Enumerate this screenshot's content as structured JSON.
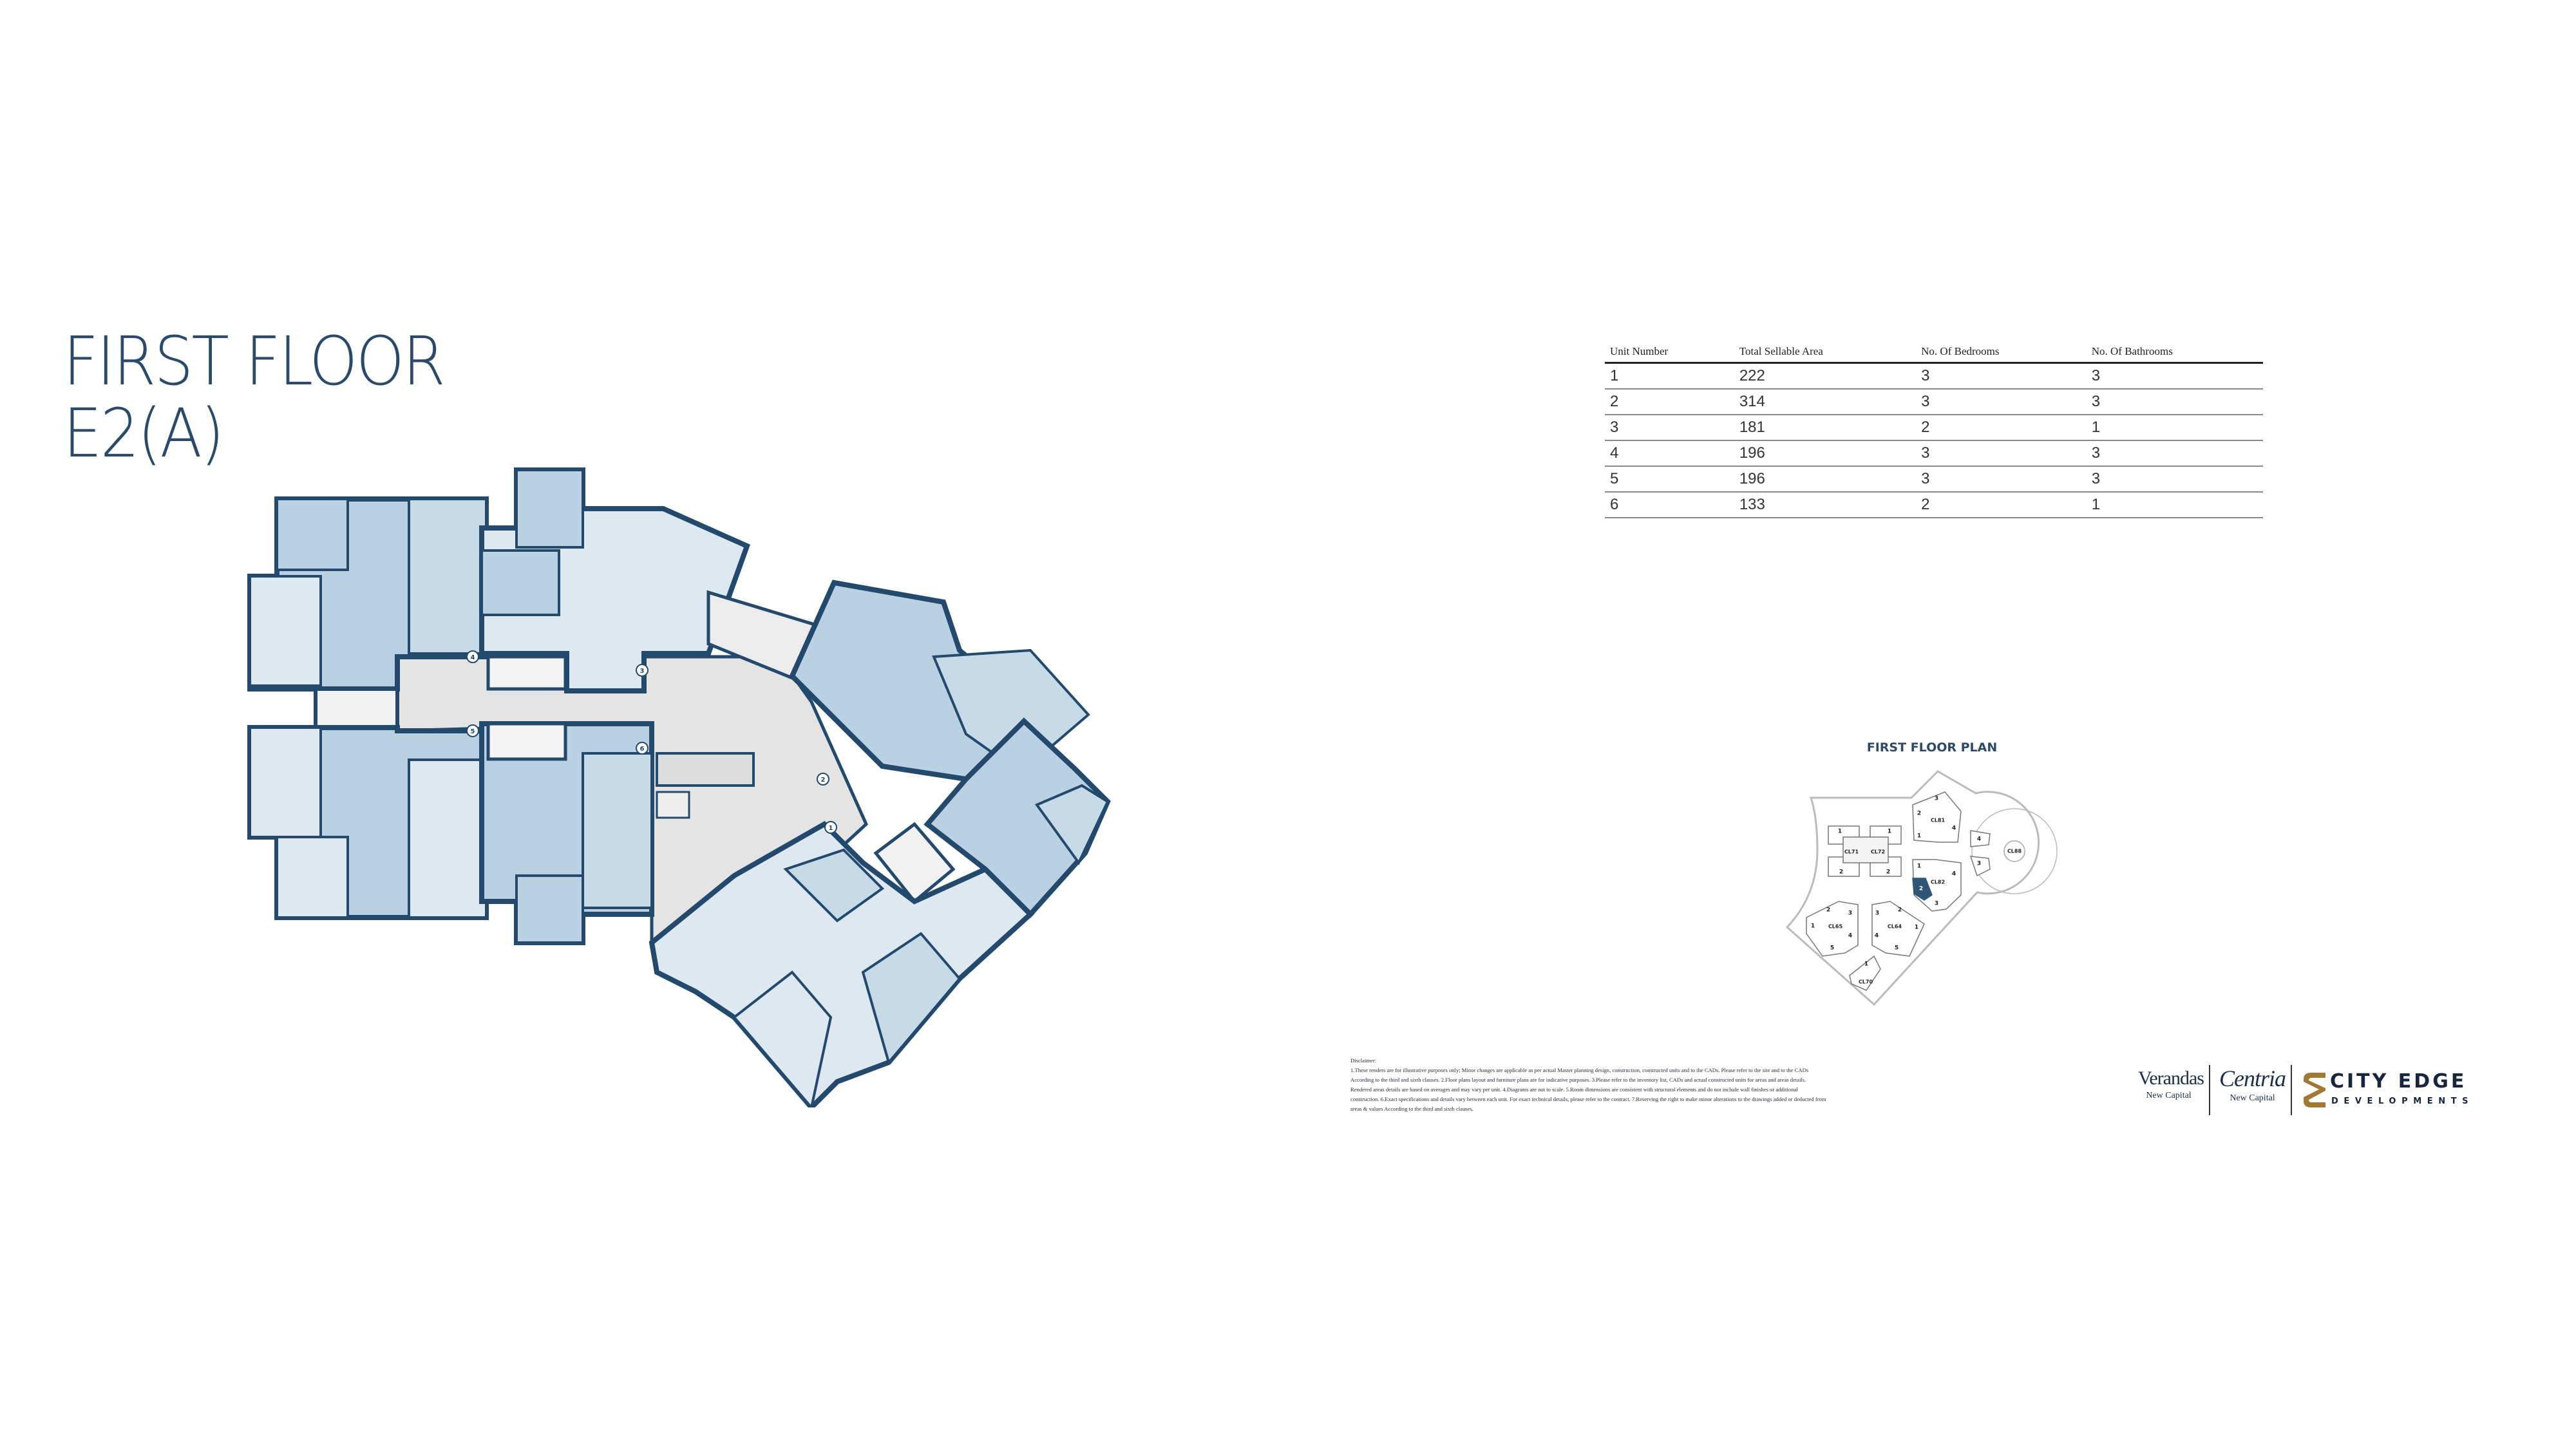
{
  "title": {
    "line1": "FIRST FLOOR",
    "line2": "E2(A)"
  },
  "table": {
    "headers": [
      "Unit Number",
      "Total Sellable Area",
      "No. Of Bedrooms",
      "No. Of Bathrooms"
    ],
    "rows": [
      [
        "1",
        "222",
        "3",
        "3"
      ],
      [
        "2",
        "314",
        "3",
        "3"
      ],
      [
        "3",
        "181",
        "2",
        "1"
      ],
      [
        "4",
        "196",
        "3",
        "3"
      ],
      [
        "5",
        "196",
        "3",
        "3"
      ],
      [
        "6",
        "133",
        "2",
        "1"
      ]
    ]
  },
  "keyplan": {
    "title": "FIRST FLOOR PLAN",
    "clusters": [
      "CL71",
      "CL72",
      "CL81",
      "CL82",
      "CL88",
      "CL65",
      "CL64",
      "CL70"
    ],
    "units": [
      "1",
      "2",
      "1",
      "2",
      "3",
      "2",
      "1",
      "4",
      "1",
      "4",
      "3",
      "2",
      "4",
      "3",
      "2",
      "3",
      "1",
      "4",
      "5",
      "3",
      "2",
      "1",
      "4",
      "5",
      "1"
    ],
    "highlighted_unit": "2",
    "highlighted_cluster": "CL82",
    "highlight_color": "#2f5677"
  },
  "plan": {
    "unit_markers": [
      "1",
      "2",
      "3",
      "4",
      "5",
      "6"
    ],
    "colors": {
      "unit_fill": "#b9d1e2",
      "light_fill": "#dde8f1",
      "core": "#e4e4e4",
      "wall": "#23496d"
    }
  },
  "disclaimer": {
    "heading": "Disclaimer:",
    "text": "1.These renders are for illustrative purposes only; Minor changes are applicable as per actual Master planning design, construction, constructed units and to the CADs. Please refer to the site and to the CADs According to the third and sixth clauses. 2.Floor plans layout and furniture plans are for indicative purposes. 3.Please refer to the inventory list, CADs and actual constructed units for areas and areas details. Rendered areas details are based on averages and may vary per unit. 4.Diagrams are not to scale. 5.Room dimensions are consistent with structural elements and do not include wall finishes or additional construction. 6.Exact specifications and details vary between each unit. For exact technical details, please refer to the contract. 7.Reserving the right to make minor alterations to the drawings added or deducted from areas & values According to the third and sixth clauses."
  },
  "logos": {
    "verandas": {
      "name": "Verandas",
      "sub": "New Capital"
    },
    "centria": {
      "name": "Centria",
      "sub": "New Capital"
    },
    "cityedge": {
      "name": "CITY EDGE",
      "sub": "DEVELOPMENTS",
      "gold": "#a07a35"
    }
  }
}
